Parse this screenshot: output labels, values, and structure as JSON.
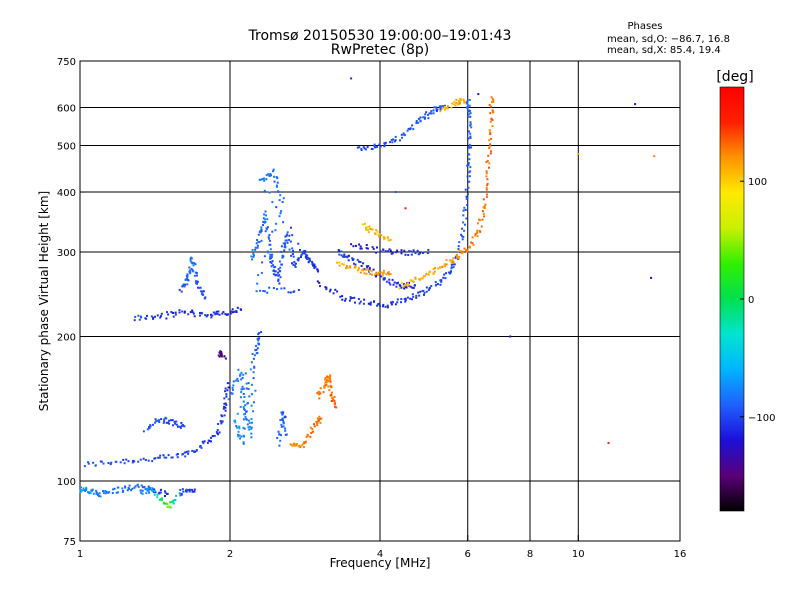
{
  "chart_data": {
    "type": "scatter",
    "title": "Tromsø 20150530 19:00:00–19:01:43",
    "subtitle": "RwPretec (8p)",
    "xlabel": "Frequency [MHz]",
    "ylabel": "Stationary phase Virtual Height [km]",
    "x_scale": "log",
    "y_scale": "log",
    "xlim": [
      1,
      16
    ],
    "ylim": [
      75,
      750
    ],
    "x_ticks": [
      {
        "value": 1,
        "label": "1"
      },
      {
        "value": 2,
        "label": "2"
      },
      {
        "value": 4,
        "label": "4"
      },
      {
        "value": 6,
        "label": "6"
      },
      {
        "value": 8,
        "label": "8"
      },
      {
        "value": 10,
        "label": "10"
      },
      {
        "value": 16,
        "label": "16"
      }
    ],
    "y_ticks": [
      {
        "value": 75,
        "label": "75"
      },
      {
        "value": 100,
        "label": "100"
      },
      {
        "value": 200,
        "label": "200"
      },
      {
        "value": 300,
        "label": "300"
      },
      {
        "value": 400,
        "label": "400"
      },
      {
        "value": 500,
        "label": "500"
      },
      {
        "value": 600,
        "label": "600"
      },
      {
        "value": 750,
        "label": "750"
      }
    ],
    "grid": true,
    "stats": {
      "heading": "Phases",
      "line_o": "mean, sd,O: −86.7, 16.8",
      "line_x": "mean, sd,X:  85.4, 19.4"
    },
    "colorbar": {
      "label": "[deg]",
      "range": [
        -180,
        180
      ],
      "ticks": [
        {
          "value": 100,
          "label": "100"
        },
        {
          "value": 0,
          "label": "0"
        },
        {
          "value": -100,
          "label": "−100"
        }
      ],
      "colors": [
        "#000000",
        "#5a0078",
        "#1c10d8",
        "#1e60ff",
        "#00b4ff",
        "#00e4d0",
        "#00e050",
        "#30f000",
        "#c8f000",
        "#ffea00",
        "#ff9400",
        "#ff2000",
        "#ff0000"
      ]
    },
    "series": [
      {
        "points": [
          [
            1.02,
            108,
            -95
          ],
          [
            1.2,
            110,
            -98
          ],
          [
            1.4,
            111,
            -100
          ],
          [
            1.6,
            113,
            -102
          ],
          [
            1.75,
            118,
            -104
          ],
          [
            1.88,
            126,
            -106
          ],
          [
            1.95,
            140,
            -108
          ],
          [
            1.98,
            160,
            -110
          ]
        ]
      },
      {
        "points": [
          [
            1.35,
            128,
            -95
          ],
          [
            1.45,
            135,
            -98
          ],
          [
            1.55,
            132,
            -100
          ],
          [
            1.62,
            130,
            -100
          ]
        ]
      },
      {
        "points": [
          [
            1.0,
            96,
            -70
          ],
          [
            1.05,
            95,
            -75
          ],
          [
            1.1,
            94,
            -80
          ],
          [
            1.2,
            96,
            -85
          ],
          [
            1.3,
            97,
            -90
          ],
          [
            1.4,
            96,
            -100
          ],
          [
            1.5,
            94,
            -110
          ]
        ]
      },
      {
        "points": [
          [
            1.32,
            95,
            -85
          ],
          [
            1.4,
            96,
            -70
          ],
          [
            1.5,
            88,
            50
          ],
          [
            1.6,
            95,
            -100
          ],
          [
            1.7,
            96,
            -110
          ]
        ]
      },
      {
        "points": [
          [
            1.28,
            218,
            -100
          ],
          [
            1.45,
            220,
            -105
          ],
          [
            1.6,
            225,
            -110
          ],
          [
            1.8,
            222,
            -110
          ],
          [
            1.95,
            223,
            -112
          ],
          [
            2.1,
            228,
            -110
          ]
        ]
      },
      {
        "points": [
          [
            1.6,
            250,
            -95
          ],
          [
            1.65,
            265,
            -90
          ],
          [
            1.68,
            290,
            -80
          ],
          [
            1.72,
            260,
            -95
          ],
          [
            1.78,
            240,
            -100
          ]
        ]
      },
      {
        "points": [
          [
            1.9,
            185,
            -150
          ],
          [
            1.95,
            182,
            -140
          ]
        ]
      },
      {
        "points": [
          [
            2.0,
            150,
            -80
          ],
          [
            2.1,
            170,
            -85
          ],
          [
            2.15,
            140,
            -80
          ],
          [
            2.2,
            125,
            -75
          ],
          [
            2.25,
            180,
            -90
          ],
          [
            2.3,
            205,
            -95
          ],
          [
            2.05,
            135,
            -70
          ],
          [
            2.12,
            120,
            -75
          ],
          [
            2.18,
            160,
            -90
          ]
        ]
      },
      {
        "points": [
          [
            2.2,
            290,
            -80
          ],
          [
            2.3,
            320,
            -90
          ],
          [
            2.35,
            360,
            -85
          ],
          [
            2.4,
            300,
            -90
          ],
          [
            2.45,
            280,
            -95
          ],
          [
            2.5,
            260,
            -100
          ],
          [
            2.55,
            300,
            -95
          ],
          [
            2.6,
            330,
            -90
          ],
          [
            2.7,
            280,
            -100
          ],
          [
            2.8,
            300,
            -100
          ],
          [
            2.9,
            290,
            -105
          ],
          [
            3.0,
            270,
            -110
          ],
          [
            2.3,
            420,
            -80
          ],
          [
            2.45,
            440,
            -85
          ],
          [
            2.55,
            380,
            -90
          ],
          [
            2.25,
            250,
            -85
          ],
          [
            2.75,
            250,
            -100
          ]
        ]
      },
      {
        "points": [
          [
            2.5,
            120,
            -90
          ],
          [
            2.55,
            140,
            -95
          ],
          [
            2.6,
            125,
            -90
          ]
        ]
      },
      {
        "points": [
          [
            2.65,
            118,
            120
          ],
          [
            2.8,
            119,
            125
          ],
          [
            2.95,
            130,
            130
          ],
          [
            3.05,
            135,
            130
          ]
        ]
      },
      {
        "points": [
          [
            3.0,
            150,
            130
          ],
          [
            3.1,
            158,
            128
          ],
          [
            3.15,
            165,
            125
          ],
          [
            3.2,
            150,
            130
          ],
          [
            3.25,
            143,
            135
          ]
        ]
      },
      {
        "points": [
          [
            3.3,
            300,
            -100
          ],
          [
            3.5,
            290,
            -105
          ],
          [
            3.8,
            275,
            -110
          ],
          [
            4.1,
            262,
            -110
          ],
          [
            4.4,
            255,
            -110
          ],
          [
            4.7,
            256,
            -110
          ]
        ]
      },
      {
        "points": [
          [
            3.3,
            285,
            110
          ],
          [
            3.6,
            275,
            115
          ],
          [
            3.9,
            272,
            118
          ],
          [
            4.2,
            270,
            120
          ]
        ]
      },
      {
        "points": [
          [
            3.7,
            340,
            105
          ],
          [
            3.9,
            330,
            110
          ],
          [
            4.2,
            318,
            112
          ]
        ]
      },
      {
        "points": [
          [
            3.0,
            260,
            -115
          ],
          [
            3.4,
            240,
            -112
          ],
          [
            3.8,
            235,
            -110
          ],
          [
            4.2,
            233,
            -108
          ],
          [
            4.6,
            240,
            -105
          ],
          [
            5.0,
            250,
            -103
          ],
          [
            5.4,
            265,
            -100
          ],
          [
            5.7,
            290,
            -98
          ],
          [
            5.9,
            340,
            -95
          ],
          [
            6.0,
            420,
            -92
          ],
          [
            6.05,
            500,
            -90
          ],
          [
            6.05,
            580,
            -90
          ],
          [
            6.0,
            620,
            -90
          ]
        ]
      },
      {
        "points": [
          [
            3.5,
            310,
            -120
          ],
          [
            4.0,
            302,
            -115
          ],
          [
            4.5,
            298,
            -110
          ],
          [
            5.0,
            303,
            -105
          ]
        ]
      },
      {
        "points": [
          [
            4.4,
            255,
            105
          ],
          [
            4.8,
            265,
            110
          ],
          [
            5.2,
            275,
            115
          ],
          [
            5.6,
            290,
            120
          ],
          [
            6.0,
            305,
            125
          ],
          [
            6.3,
            330,
            128
          ],
          [
            6.5,
            380,
            130
          ],
          [
            6.6,
            460,
            130
          ],
          [
            6.7,
            560,
            130
          ],
          [
            6.7,
            630,
            130
          ]
        ]
      },
      {
        "points": [
          [
            3.6,
            495,
            -100
          ],
          [
            4.0,
            500,
            -100
          ],
          [
            4.4,
            520,
            -98
          ],
          [
            4.8,
            560,
            -95
          ],
          [
            5.1,
            590,
            -95
          ],
          [
            5.4,
            605,
            -92
          ]
        ]
      },
      {
        "points": [
          [
            5.3,
            590,
            110
          ],
          [
            5.7,
            615,
            110
          ],
          [
            5.9,
            620,
            110
          ]
        ]
      }
    ],
    "isolated_points": [
      [
        3.5,
        690,
        -110
      ],
      [
        6.3,
        640,
        -120
      ],
      [
        10.0,
        480,
        120
      ],
      [
        11.5,
        120,
        150
      ],
      [
        13.0,
        610,
        -130
      ],
      [
        14.2,
        475,
        125
      ],
      [
        7.3,
        200,
        -120
      ],
      [
        14.0,
        265,
        -125
      ],
      [
        4.3,
        400,
        -95
      ],
      [
        4.5,
        370,
        160
      ]
    ]
  }
}
